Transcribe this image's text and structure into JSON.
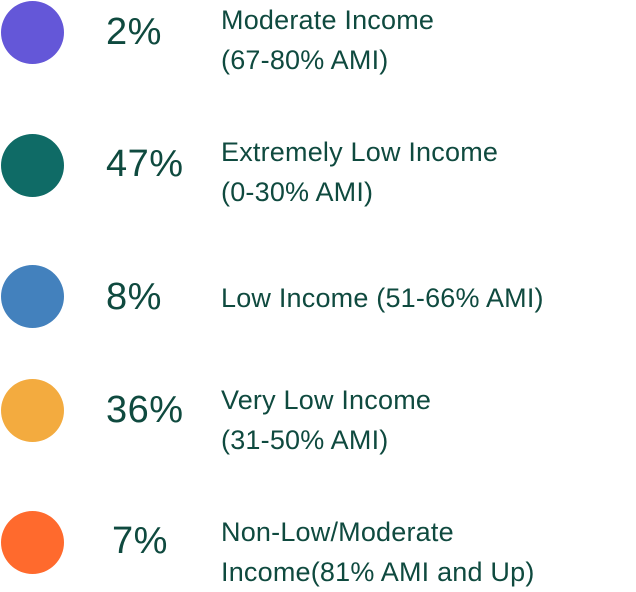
{
  "chart_data": {
    "type": "pie",
    "legend_placement": "left-dots",
    "series": [
      {
        "value": 2,
        "value_label": "2%",
        "label_lines": [
          "Moderate Income",
          "(67-80% AMI)"
        ],
        "color": "#6457d8"
      },
      {
        "value": 47,
        "value_label": "47%",
        "label_lines": [
          "Extremely Low Income",
          "(0-30% AMI)"
        ],
        "color": "#0f6b66"
      },
      {
        "value": 8,
        "value_label": "8%",
        "label_lines": [
          "Low Income (51-66% AMI)"
        ],
        "color": "#4381bd"
      },
      {
        "value": 36,
        "value_label": "36%",
        "label_lines": [
          "Very Low Income",
          "(31-50% AMI)"
        ],
        "color": "#f3ab3f"
      },
      {
        "value": 7,
        "value_label": "7%",
        "label_lines": [
          "Non-Low/Moderate",
          "Income(81% AMI and Up)"
        ],
        "color": "#ff6a2d"
      }
    ]
  },
  "colors": {
    "text": "#0f4a3f",
    "background": "#ffffff"
  }
}
